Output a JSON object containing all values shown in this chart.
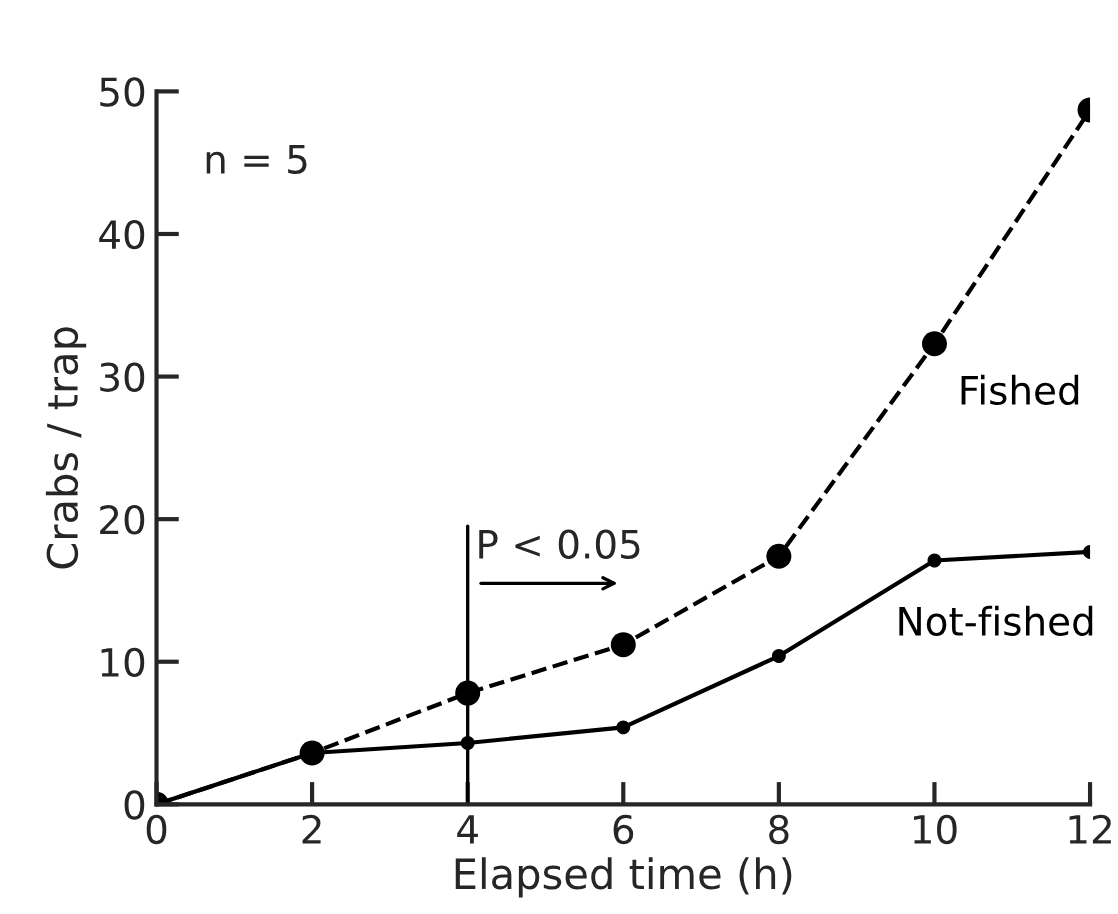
{
  "chart_data": {
    "type": "line",
    "xlabel": "Elapsed time (h)",
    "ylabel": "Crabs / trap",
    "x": [
      0,
      2,
      4,
      6,
      8,
      10,
      12
    ],
    "series": [
      {
        "name": "Fished",
        "color": "#000000",
        "line_style": "dashed",
        "values": [
          0,
          3.6,
          7.8,
          11.2,
          17.4,
          32.3,
          48.7
        ]
      },
      {
        "name": "Not-fished",
        "color": "#000000",
        "line_style": "solid",
        "values": [
          0,
          3.6,
          4.3,
          5.4,
          10.4,
          17.1,
          17.7
        ]
      }
    ],
    "marker": "circle",
    "xlim": [
      0,
      12
    ],
    "xticks": [
      0,
      2,
      4,
      6,
      8,
      10,
      12
    ],
    "ylim": [
      0,
      50
    ],
    "yticks": [
      0,
      10,
      20,
      30,
      40,
      50
    ],
    "ref_lines": [
      {
        "axis": "x",
        "value": 4,
        "label": "P < 0.05",
        "color": "#000000"
      }
    ],
    "annotations": [
      "n = 5"
    ],
    "grid": false,
    "legend": false
  }
}
